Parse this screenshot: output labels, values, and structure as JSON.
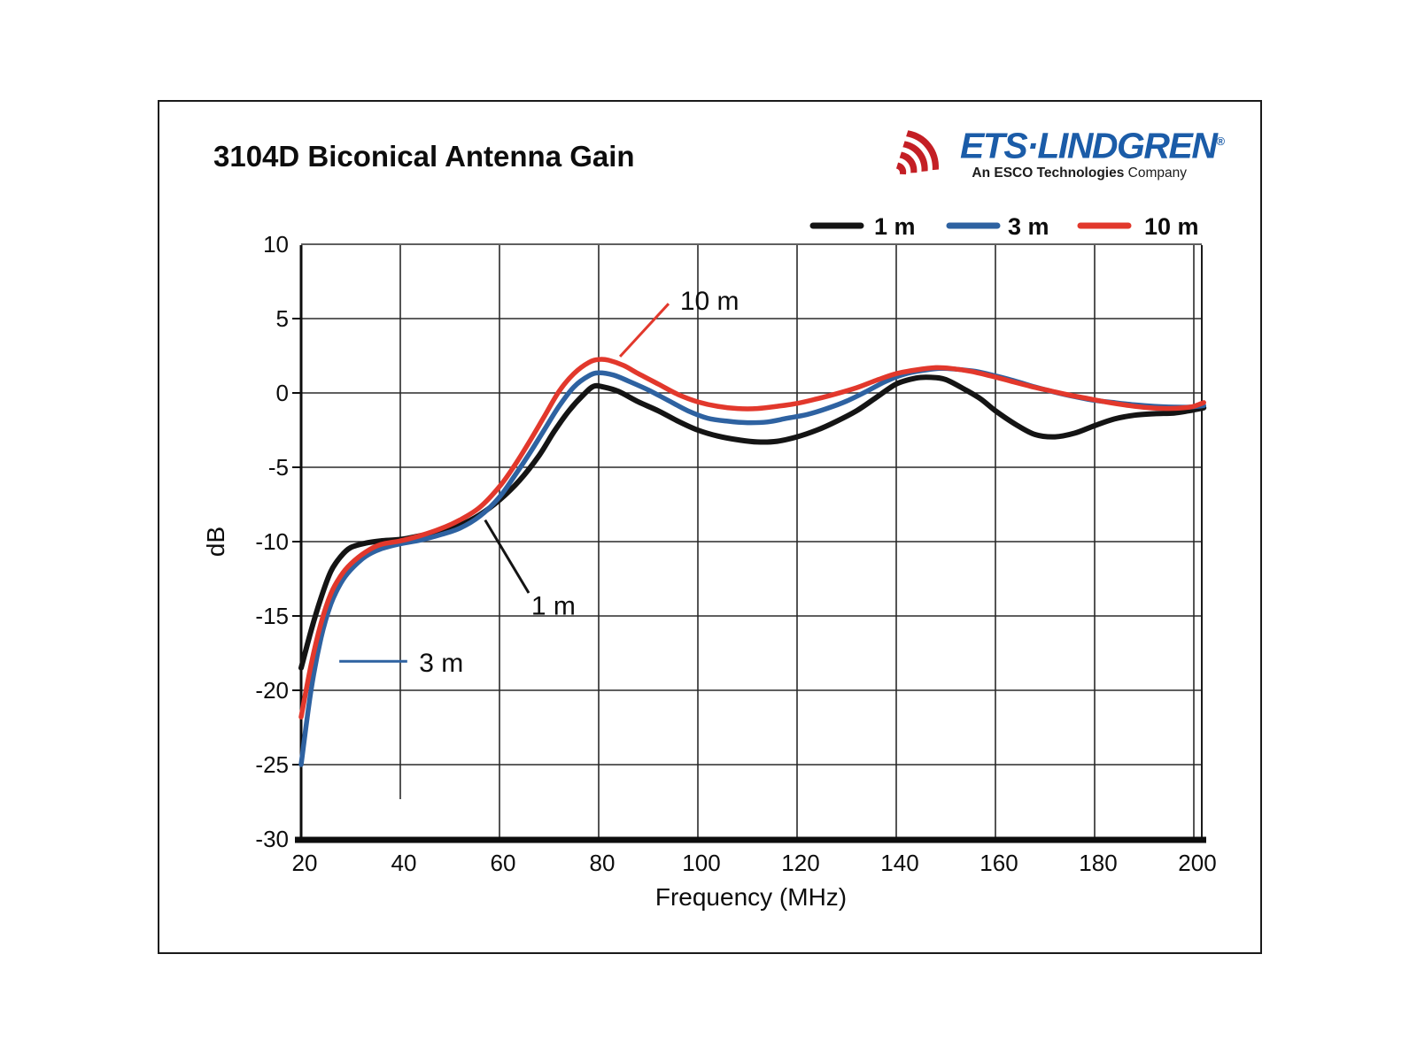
{
  "page": {
    "title": "3104D Biconical Antenna Gain"
  },
  "logo": {
    "brand": "ETS·LINDGREN",
    "registered": "®",
    "tagline_bold": "An ESCO Technologies",
    "tagline_regular": " Company",
    "brand_color": "#1b5ca8",
    "arcs_color": "#c41f25"
  },
  "chart_data": {
    "type": "line",
    "title": "3104D Biconical Antenna Gain",
    "xlabel": "Frequency (MHz)",
    "ylabel": "dB",
    "xlim": [
      20,
      203
    ],
    "ylim": [
      -30,
      10
    ],
    "x_ticks": [
      20,
      40,
      60,
      80,
      100,
      120,
      140,
      160,
      180,
      200
    ],
    "y_ticks": [
      10,
      5,
      0,
      -5,
      -10,
      -15,
      -20,
      -25,
      -30
    ],
    "grid": true,
    "legend": {
      "position": "top-right-above-plot",
      "entries": [
        {
          "label": "1 m",
          "color": "#141414"
        },
        {
          "label": "3 m",
          "color": "#2e62a1"
        },
        {
          "label": "10 m",
          "color": "#e2382c"
        }
      ]
    },
    "series": [
      {
        "name": "1 m",
        "color": "#141414",
        "points": [
          [
            20,
            -18.5
          ],
          [
            22,
            -16.0
          ],
          [
            24,
            -13.8
          ],
          [
            26,
            -12.0
          ],
          [
            28,
            -11.0
          ],
          [
            30,
            -10.4
          ],
          [
            33,
            -10.1
          ],
          [
            36,
            -9.95
          ],
          [
            40,
            -9.85
          ],
          [
            44,
            -9.6
          ],
          [
            48,
            -9.3
          ],
          [
            52,
            -8.9
          ],
          [
            56,
            -8.2
          ],
          [
            60,
            -7.2
          ],
          [
            64,
            -5.9
          ],
          [
            68,
            -4.2
          ],
          [
            71,
            -2.6
          ],
          [
            74,
            -1.2
          ],
          [
            77,
            -0.1
          ],
          [
            79,
            0.45
          ],
          [
            81,
            0.4
          ],
          [
            84,
            0.1
          ],
          [
            88,
            -0.6
          ],
          [
            92,
            -1.2
          ],
          [
            96,
            -1.9
          ],
          [
            100,
            -2.5
          ],
          [
            104,
            -2.9
          ],
          [
            108,
            -3.15
          ],
          [
            112,
            -3.3
          ],
          [
            116,
            -3.25
          ],
          [
            120,
            -2.95
          ],
          [
            124,
            -2.5
          ],
          [
            128,
            -1.9
          ],
          [
            132,
            -1.2
          ],
          [
            136,
            -0.3
          ],
          [
            140,
            0.6
          ],
          [
            144,
            1.0
          ],
          [
            147,
            1.05
          ],
          [
            150,
            0.9
          ],
          [
            154,
            0.2
          ],
          [
            157,
            -0.4
          ],
          [
            160,
            -1.2
          ],
          [
            164,
            -2.1
          ],
          [
            168,
            -2.8
          ],
          [
            172,
            -2.95
          ],
          [
            176,
            -2.7
          ],
          [
            180,
            -2.2
          ],
          [
            184,
            -1.75
          ],
          [
            188,
            -1.5
          ],
          [
            192,
            -1.4
          ],
          [
            196,
            -1.35
          ],
          [
            199,
            -1.2
          ],
          [
            202,
            -1.0
          ]
        ]
      },
      {
        "name": "3 m",
        "color": "#2e62a1",
        "points": [
          [
            20,
            -25.0
          ],
          [
            22,
            -20.0
          ],
          [
            24,
            -16.5
          ],
          [
            26,
            -14.2
          ],
          [
            28,
            -12.8
          ],
          [
            30,
            -11.9
          ],
          [
            33,
            -11.0
          ],
          [
            36,
            -10.5
          ],
          [
            40,
            -10.15
          ],
          [
            44,
            -9.9
          ],
          [
            48,
            -9.55
          ],
          [
            52,
            -9.1
          ],
          [
            56,
            -8.3
          ],
          [
            60,
            -7.0
          ],
          [
            63,
            -5.6
          ],
          [
            66,
            -4.1
          ],
          [
            69,
            -2.5
          ],
          [
            72,
            -0.9
          ],
          [
            75,
            0.4
          ],
          [
            78,
            1.15
          ],
          [
            80,
            1.35
          ],
          [
            83,
            1.2
          ],
          [
            86,
            0.8
          ],
          [
            90,
            0.2
          ],
          [
            94,
            -0.5
          ],
          [
            98,
            -1.2
          ],
          [
            102,
            -1.7
          ],
          [
            106,
            -1.9
          ],
          [
            110,
            -2.0
          ],
          [
            114,
            -1.95
          ],
          [
            118,
            -1.7
          ],
          [
            122,
            -1.45
          ],
          [
            126,
            -1.05
          ],
          [
            130,
            -0.55
          ],
          [
            134,
            0.1
          ],
          [
            138,
            0.8
          ],
          [
            142,
            1.3
          ],
          [
            146,
            1.55
          ],
          [
            149,
            1.65
          ],
          [
            152,
            1.6
          ],
          [
            156,
            1.45
          ],
          [
            160,
            1.15
          ],
          [
            164,
            0.8
          ],
          [
            168,
            0.4
          ],
          [
            172,
            0.05
          ],
          [
            176,
            -0.25
          ],
          [
            180,
            -0.5
          ],
          [
            184,
            -0.65
          ],
          [
            188,
            -0.8
          ],
          [
            192,
            -0.9
          ],
          [
            196,
            -0.95
          ],
          [
            199,
            -0.95
          ],
          [
            202,
            -0.85
          ]
        ]
      },
      {
        "name": "10 m",
        "color": "#e2382c",
        "points": [
          [
            20,
            -21.8
          ],
          [
            22,
            -18.3
          ],
          [
            24,
            -15.5
          ],
          [
            26,
            -13.5
          ],
          [
            28,
            -12.3
          ],
          [
            30,
            -11.5
          ],
          [
            33,
            -10.7
          ],
          [
            36,
            -10.2
          ],
          [
            40,
            -9.95
          ],
          [
            44,
            -9.6
          ],
          [
            48,
            -9.15
          ],
          [
            52,
            -8.55
          ],
          [
            56,
            -7.7
          ],
          [
            60,
            -6.3
          ],
          [
            63,
            -4.9
          ],
          [
            66,
            -3.3
          ],
          [
            69,
            -1.6
          ],
          [
            72,
            0.1
          ],
          [
            75,
            1.3
          ],
          [
            78,
            2.05
          ],
          [
            80,
            2.25
          ],
          [
            82,
            2.2
          ],
          [
            85,
            1.85
          ],
          [
            88,
            1.3
          ],
          [
            92,
            0.6
          ],
          [
            96,
            -0.1
          ],
          [
            100,
            -0.6
          ],
          [
            104,
            -0.9
          ],
          [
            108,
            -1.05
          ],
          [
            112,
            -1.05
          ],
          [
            116,
            -0.9
          ],
          [
            120,
            -0.7
          ],
          [
            124,
            -0.4
          ],
          [
            128,
            -0.05
          ],
          [
            132,
            0.35
          ],
          [
            136,
            0.85
          ],
          [
            140,
            1.3
          ],
          [
            144,
            1.55
          ],
          [
            148,
            1.7
          ],
          [
            151,
            1.65
          ],
          [
            155,
            1.45
          ],
          [
            159,
            1.15
          ],
          [
            163,
            0.8
          ],
          [
            167,
            0.45
          ],
          [
            171,
            0.15
          ],
          [
            175,
            -0.15
          ],
          [
            179,
            -0.4
          ],
          [
            183,
            -0.65
          ],
          [
            187,
            -0.85
          ],
          [
            191,
            -1.0
          ],
          [
            195,
            -1.05
          ],
          [
            198,
            -1.0
          ],
          [
            200,
            -0.9
          ],
          [
            202,
            -0.65
          ]
        ]
      }
    ],
    "annotations": [
      {
        "label": "10 m",
        "color": "#e2382c",
        "line": [
          [
            84.3,
            2.45
          ],
          [
            94.1,
            6.0
          ]
        ],
        "text_at": [
          96.4,
          5.6
        ]
      },
      {
        "label": "1 m",
        "color": "#141414",
        "line": [
          [
            57.1,
            -8.55
          ],
          [
            65.9,
            -13.45
          ]
        ],
        "text_at": [
          66.4,
          -14.9
        ]
      },
      {
        "label": "3 m",
        "color": "#2e62a1",
        "line": [
          [
            27.7,
            -18.05
          ],
          [
            41.4,
            -18.05
          ]
        ],
        "text_at": [
          43.8,
          -18.75
        ]
      }
    ]
  }
}
